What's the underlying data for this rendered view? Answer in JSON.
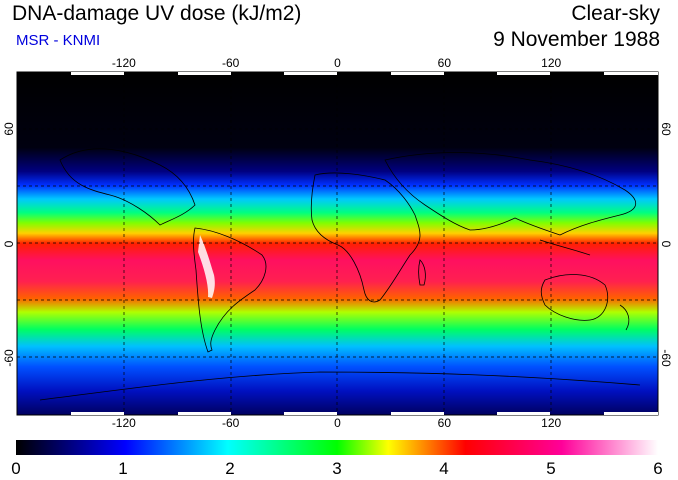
{
  "header": {
    "title": "DNA-damage UV dose (kJ/m2)",
    "subtitle": "MSR - KNMI",
    "mode": "Clear-sky",
    "date": "9 November 1988"
  },
  "map": {
    "longitude_ticks": [
      "-120",
      "-60",
      "0",
      "60",
      "120"
    ],
    "longitude_values": [
      -120,
      -60,
      0,
      60,
      120
    ],
    "latitude_ticks": [
      "60",
      "0",
      "-60"
    ],
    "latitude_values": [
      60,
      0,
      -60
    ],
    "lon_range": [
      -180,
      180
    ],
    "lat_range": [
      -90,
      90
    ],
    "gridlines": "dashed",
    "colors": {
      "scale": [
        "#000000",
        "#0000ff",
        "#00ffff",
        "#00ff00",
        "#ffff00",
        "#ff0000",
        "#ff00aa",
        "#ffffff"
      ]
    }
  },
  "colorbar": {
    "labels": [
      "0",
      "1",
      "2",
      "3",
      "4",
      "5",
      "6"
    ],
    "min": 0,
    "max": 6
  }
}
